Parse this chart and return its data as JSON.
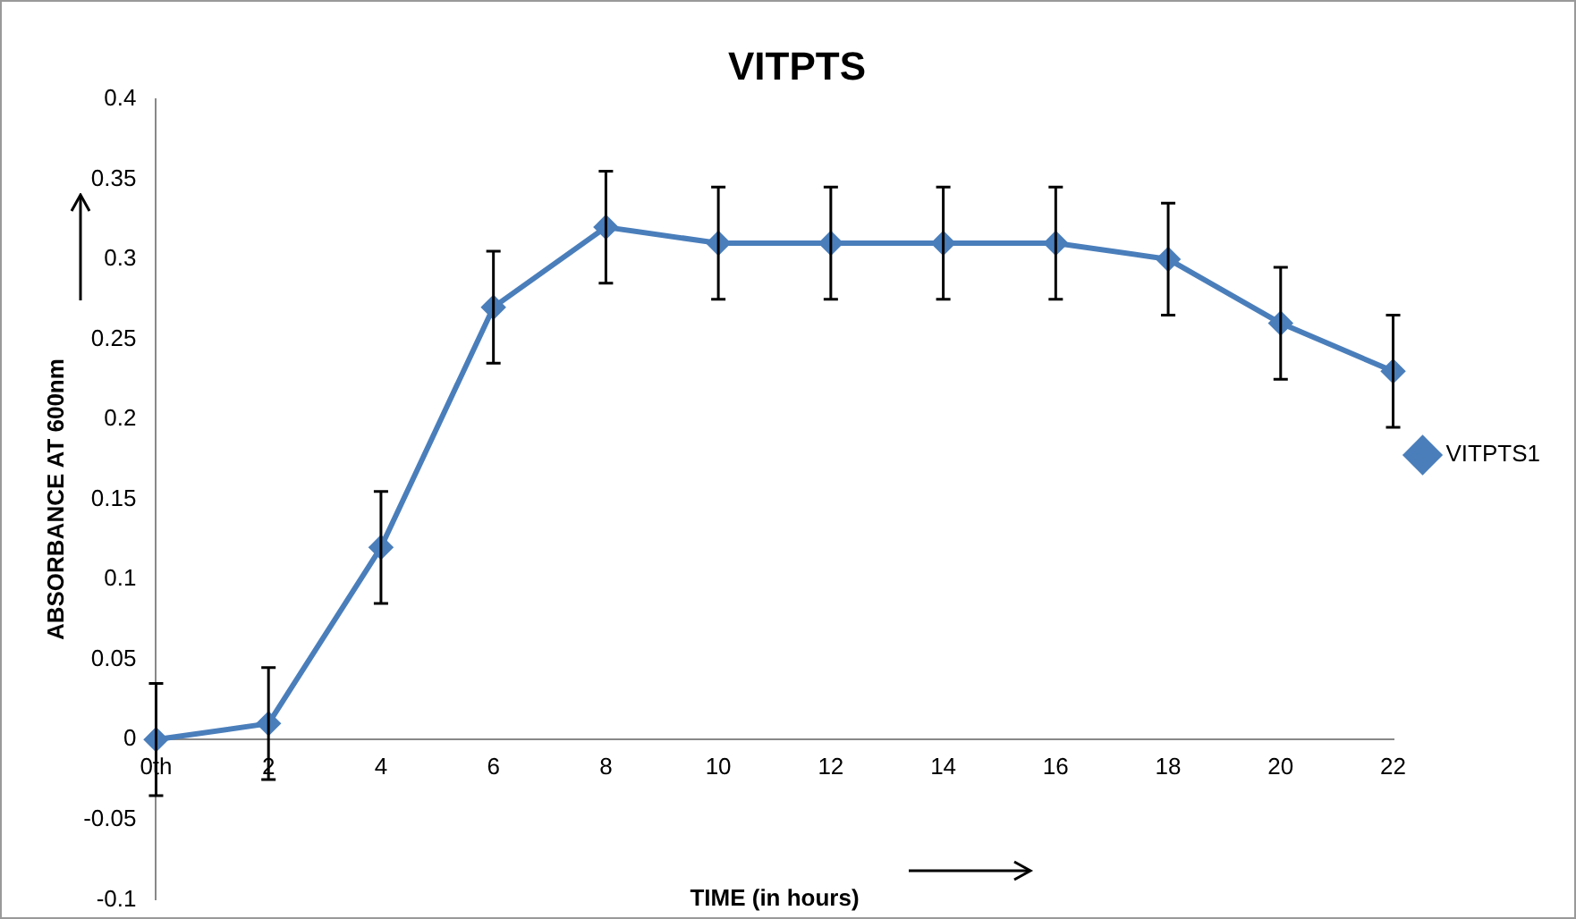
{
  "chart_data": {
    "type": "line",
    "title": "VITPTS",
    "xlabel": "TIME (in hours)",
    "ylabel": "ABSORBANCE AT 600nm",
    "categories": [
      "0th",
      "2",
      "4",
      "6",
      "8",
      "10",
      "12",
      "14",
      "16",
      "18",
      "20",
      "22"
    ],
    "series": [
      {
        "name": "VITPTS1",
        "color": "#4a7ebb",
        "values": [
          0,
          0.01,
          0.12,
          0.27,
          0.32,
          0.31,
          0.31,
          0.31,
          0.31,
          0.3,
          0.26,
          0.23
        ],
        "errors": [
          0.035,
          0.035,
          0.035,
          0.035,
          0.035,
          0.035,
          0.035,
          0.035,
          0.035,
          0.035,
          0.035,
          0.035
        ]
      }
    ],
    "ylim": [
      -0.1,
      0.4
    ],
    "yticks": [
      -0.1,
      -0.05,
      0,
      0.05,
      0.1,
      0.15,
      0.2,
      0.25,
      0.3,
      0.35,
      0.4
    ],
    "grid": false,
    "legend": "right",
    "marker": "diamond",
    "line_style": "solid"
  }
}
